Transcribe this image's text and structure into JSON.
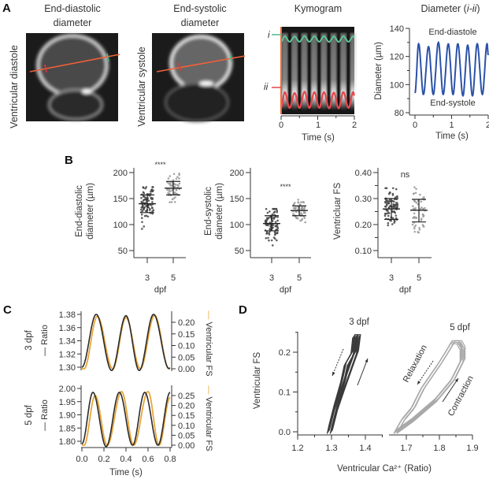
{
  "panel_labels": [
    "A",
    "B",
    "C",
    "D"
  ],
  "panel_a": {
    "images": [
      {
        "title_lines": [
          "End-diastolic",
          "diameter"
        ],
        "ylabel": "Ventricular diastole"
      },
      {
        "title_lines": [
          "End-systolic",
          "diameter"
        ],
        "ylabel": "Ventricular systole"
      }
    ],
    "kymogram": {
      "title": "Kymogram",
      "markers": [
        "i",
        "ii"
      ],
      "xlabel": "Time (s)",
      "xticks": [
        "0",
        "1",
        "2"
      ],
      "marker_colors": {
        "i": "#4fb88a",
        "ii": "#e0474c"
      }
    }
  },
  "chart_data": [
    {
      "type": "line",
      "title_parts": [
        "Diameter (",
        "i-ii",
        ")"
      ],
      "xlabel": "Time (s)",
      "ylabel": "Diameter (µm)",
      "xlim": [
        0,
        2
      ],
      "ylim": [
        80,
        140
      ],
      "xticks": [
        "0",
        "1",
        "2"
      ],
      "yticks": [
        "80",
        "100",
        "120",
        "140"
      ],
      "annotations": [
        "End-diastole",
        "End-systole"
      ],
      "color": "#2c52a8",
      "extrema": [
        [
          0,
          94
        ],
        [
          0.1,
          129
        ],
        [
          0.23,
          93
        ],
        [
          0.37,
          127
        ],
        [
          0.5,
          93
        ],
        [
          0.64,
          130
        ],
        [
          0.77,
          93
        ],
        [
          0.91,
          129
        ],
        [
          1.04,
          93
        ],
        [
          1.17,
          129
        ],
        [
          1.31,
          92
        ],
        [
          1.44,
          128
        ],
        [
          1.57,
          92
        ],
        [
          1.7,
          129
        ],
        [
          1.84,
          93
        ],
        [
          1.97,
          129
        ],
        [
          2.0,
          121
        ]
      ]
    },
    {
      "type": "scatter",
      "ylabel_lines": [
        "End-diastolic",
        "diameter (µm)"
      ],
      "xlabel": "dpf",
      "categories": [
        "3",
        "5"
      ],
      "ylim": [
        50,
        200
      ],
      "yticks": [
        "50",
        "100",
        "150",
        "200"
      ],
      "significance": "****",
      "groups": [
        {
          "mean": 140,
          "sd": [
            123,
            157
          ],
          "range": [
            86,
            172
          ],
          "color": "#444444"
        },
        {
          "mean": 170,
          "sd": [
            157,
            183
          ],
          "range": [
            143,
            198
          ],
          "color": "#999999"
        }
      ]
    },
    {
      "type": "scatter",
      "ylabel_lines": [
        "End-systolic",
        "diameter (µm)"
      ],
      "xlabel": "dpf",
      "categories": [
        "3",
        "5"
      ],
      "ylim": [
        50,
        200
      ],
      "yticks": [
        "50",
        "100",
        "150",
        "200"
      ],
      "significance": "****",
      "groups": [
        {
          "mean": 102,
          "sd": [
            88,
            117
          ],
          "range": [
            60,
            130
          ],
          "color": "#444444"
        },
        {
          "mean": 127,
          "sd": [
            117,
            136
          ],
          "range": [
            103,
            150
          ],
          "color": "#999999"
        }
      ]
    },
    {
      "type": "scatter",
      "ylabel_lines": [
        "Ventricluar FS"
      ],
      "xlabel": "dpf",
      "categories": [
        "3",
        "5"
      ],
      "ylim": [
        0.1,
        0.4
      ],
      "yticks": [
        "0.10",
        "0.20",
        "0.30",
        "0.40"
      ],
      "significance": "ns",
      "groups": [
        {
          "mean": 0.26,
          "sd": [
            0.22,
            0.3
          ],
          "range": [
            0.18,
            0.34
          ],
          "color": "#444444"
        },
        {
          "mean": 0.255,
          "sd": [
            0.21,
            0.297
          ],
          "range": [
            0.13,
            0.35
          ],
          "color": "#999999"
        }
      ]
    },
    {
      "type": "line",
      "row_label": "3 dpf",
      "left_label": "Ratio",
      "right_label": "Ventricular FS",
      "xlim": [
        0,
        0.8
      ],
      "left_ylim": [
        1.3,
        1.38
      ],
      "right_ylim": [
        0,
        0.2
      ],
      "left_yticks": [
        "1.30",
        "1.32",
        "1.34",
        "1.36",
        "1.38"
      ],
      "right_yticks": [
        "0.00",
        "0.05",
        "0.10",
        "0.15",
        "0.20"
      ],
      "series": [
        {
          "name": "Ratio",
          "axis": "left",
          "color": "#2b2b2b",
          "extrema": [
            [
              0,
              1.3
            ],
            [
              0.13,
              1.38
            ],
            [
              0.27,
              1.295
            ],
            [
              0.4,
              1.378
            ],
            [
              0.52,
              1.295
            ],
            [
              0.65,
              1.38
            ],
            [
              0.79,
              1.298
            ],
            [
              0.8,
              1.299
            ]
          ]
        },
        {
          "name": "Ventricular FS",
          "axis": "right",
          "color": "#e8a537",
          "extrema": [
            [
              0.02,
              0.0
            ],
            [
              0.14,
              0.225
            ],
            [
              0.28,
              0.0
            ],
            [
              0.4,
              0.22
            ],
            [
              0.53,
              0.0
            ],
            [
              0.66,
              0.23
            ],
            [
              0.79,
              0.0
            ],
            [
              0.8,
              0.0
            ]
          ]
        }
      ]
    },
    {
      "type": "line",
      "row_label": "5 dpf",
      "left_label": "Ratio",
      "right_label": "Ventricular FS",
      "xlabel": "Time (s)",
      "xlim": [
        0,
        0.8
      ],
      "xticks": [
        "0.0",
        "0.2",
        "0.4",
        "0.6",
        "0.8"
      ],
      "left_ylim": [
        1.8,
        2.0
      ],
      "right_ylim": [
        0,
        0.25
      ],
      "left_yticks": [
        "1.80",
        "1.85",
        "1.90",
        "1.95",
        "2.00"
      ],
      "right_yticks": [
        "0.00",
        "0.05",
        "0.10",
        "0.15",
        "0.20",
        "0.25"
      ],
      "series": [
        {
          "name": "Ratio",
          "axis": "left",
          "color": "#2b2b2b",
          "extrema": [
            [
              0,
              1.79
            ],
            [
              0.1,
              1.985
            ],
            [
              0.22,
              1.78
            ],
            [
              0.34,
              1.985
            ],
            [
              0.46,
              1.785
            ],
            [
              0.57,
              1.985
            ],
            [
              0.69,
              1.785
            ],
            [
              0.8,
              1.985
            ]
          ]
        },
        {
          "name": "Ventricular FS",
          "axis": "right",
          "color": "#e8a537",
          "extrema": [
            [
              0.02,
              0.0
            ],
            [
              0.12,
              0.25
            ],
            [
              0.23,
              0.0
            ],
            [
              0.36,
              0.27
            ],
            [
              0.47,
              0.0
            ],
            [
              0.6,
              0.27
            ],
            [
              0.7,
              0.0
            ],
            [
              0.8,
              0.24
            ]
          ]
        }
      ]
    },
    {
      "type": "line",
      "xlabel": "Ventricular Ca²⁺ (Ratio)",
      "ylabel": "Ventricular FS",
      "ylim": [
        0,
        0.25
      ],
      "yticks": [
        "0.0",
        "0.1",
        "0.2"
      ],
      "segments": [
        {
          "label": "3 dpf",
          "xlim": [
            1.2,
            1.45
          ],
          "xticks": [
            "1.2",
            "1.3",
            "1.4"
          ],
          "color": "#3a3a3a",
          "loop": [
            [
              1.295,
              0.0
            ],
            [
              1.31,
              0.05
            ],
            [
              1.33,
              0.1
            ],
            [
              1.355,
              0.16
            ],
            [
              1.372,
              0.2
            ],
            [
              1.378,
              0.24
            ],
            [
              1.37,
              0.24
            ],
            [
              1.365,
              0.2
            ],
            [
              1.345,
              0.17
            ],
            [
              1.335,
              0.13
            ],
            [
              1.315,
              0.07
            ],
            [
              1.3,
              0.02
            ],
            [
              1.295,
              0.0
            ]
          ]
        },
        {
          "label": "5 dpf",
          "xlim": [
            1.66,
            1.9
          ],
          "xticks": [
            "1.7",
            "1.8",
            "1.9"
          ],
          "color": "#a9a9a9",
          "loop": [
            [
              1.67,
              0.0
            ],
            [
              1.72,
              0.03
            ],
            [
              1.79,
              0.08
            ],
            [
              1.84,
              0.13
            ],
            [
              1.87,
              0.18
            ],
            [
              1.87,
              0.21
            ],
            [
              1.86,
              0.225
            ],
            [
              1.84,
              0.225
            ],
            [
              1.83,
              0.21
            ],
            [
              1.8,
              0.17
            ],
            [
              1.75,
              0.11
            ],
            [
              1.72,
              0.06
            ],
            [
              1.69,
              0.03
            ],
            [
              1.67,
              0.0
            ]
          ]
        }
      ],
      "arrow_labels": [
        "Relaxation",
        "Contraction"
      ]
    }
  ]
}
